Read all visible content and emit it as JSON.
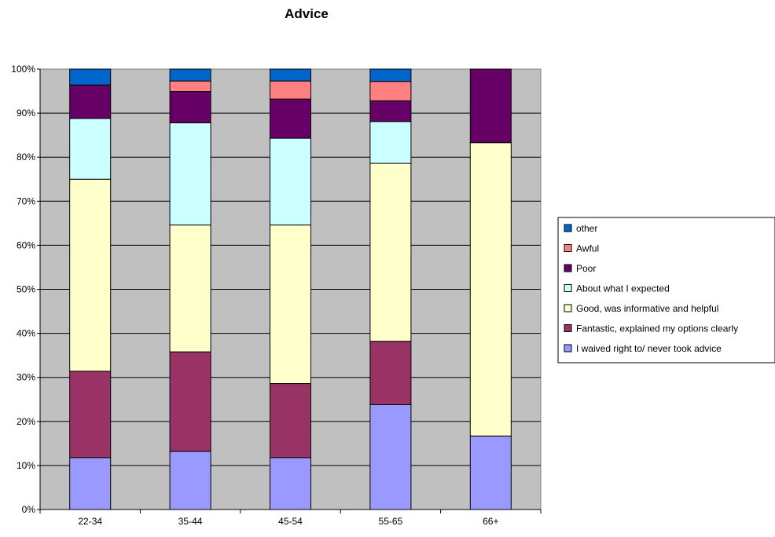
{
  "chart_data": {
    "type": "bar",
    "stacked": "percent",
    "title": "Advice",
    "xlabel": "",
    "ylabel": "",
    "ylim": [
      0,
      100
    ],
    "ytick_labels": [
      "0%",
      "10%",
      "20%",
      "30%",
      "40%",
      "50%",
      "60%",
      "70%",
      "80%",
      "90%",
      "100%"
    ],
    "categories": [
      "22-34",
      "35-44",
      "45-54",
      "55-65",
      "66+"
    ],
    "grid": true,
    "plot_background": "#c0c0c0",
    "legend_placement": "right",
    "series": [
      {
        "name": "I waived right to/ never took advice",
        "color": "#9999ff",
        "values": [
          11.8,
          13.2,
          11.8,
          23.8,
          16.7
        ]
      },
      {
        "name": "Fantastic, explained my options clearly",
        "color": "#993366",
        "values": [
          19.6,
          22.6,
          16.8,
          14.4,
          0
        ]
      },
      {
        "name": "Good, was informative and helpful",
        "color": "#ffffcc",
        "values": [
          43.6,
          28.8,
          36.0,
          40.4,
          66.6
        ]
      },
      {
        "name": "About what I expected",
        "color": "#ccffff",
        "values": [
          13.8,
          23.2,
          19.7,
          9.5,
          0
        ]
      },
      {
        "name": "Poor",
        "color": "#660066",
        "values": [
          7.6,
          7.1,
          8.9,
          4.7,
          16.7
        ]
      },
      {
        "name": "Awful",
        "color": "#ff8080",
        "values": [
          0,
          2.4,
          4.1,
          4.4,
          0
        ]
      },
      {
        "name": "other",
        "color": "#0066cc",
        "values": [
          3.6,
          2.7,
          2.7,
          2.8,
          0
        ]
      }
    ],
    "legend_order": [
      "other",
      "Awful",
      "Poor",
      "About what I expected",
      "Good, was informative and helpful",
      "Fantastic, explained my options clearly",
      "I waived right to/ never took advice"
    ]
  }
}
